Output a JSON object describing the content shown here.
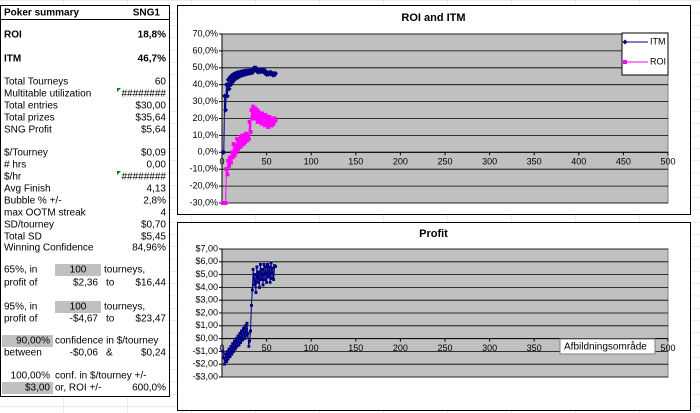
{
  "summary": {
    "rows": [
      [
        "Poker summary",
        "SNG1"
      ],
      [
        "ROI",
        "18,8%"
      ],
      [
        "ITM",
        "46,7%"
      ],
      [
        "Total Tourneys",
        "60"
      ],
      [
        "Multitable utilization",
        "########"
      ],
      [
        "Total entries",
        "$30,00"
      ],
      [
        "Total prizes",
        "$35,64"
      ],
      [
        "SNG Profit",
        "$5,64"
      ],
      [
        "$/Tourney",
        "$0,09"
      ],
      [
        "# hrs",
        "0,00"
      ],
      [
        "$/hr",
        "########"
      ],
      [
        "Avg Finish",
        "4,13"
      ],
      [
        "Bubble % +/-",
        "2,8%"
      ],
      [
        "max OOTM streak",
        "4"
      ],
      [
        "SD/tourney",
        "$0,70"
      ],
      [
        "Total SD",
        "$5,45"
      ],
      [
        "Winning Confidence",
        "84,96%"
      ],
      [
        "65%, in",
        "100",
        "tourneys,"
      ],
      [
        "profit of",
        "$2,36",
        "to",
        "$16,44"
      ],
      [
        "95%, in",
        "100",
        "tourneys,"
      ],
      [
        "profit of",
        "-$4,67",
        "to",
        "$23,47"
      ],
      [
        "90,00%",
        "confidence in $/tourney"
      ],
      [
        "between",
        "-$0,06",
        "&",
        "$0,24"
      ],
      [
        "100,00%",
        "conf. in $/tourney +/-"
      ],
      [
        "$3,00",
        "or, ROI +/-",
        "600,0%"
      ]
    ]
  },
  "tooltip": "Afbildningsområde",
  "chart_data": [
    {
      "type": "line",
      "title": "ROI and ITM",
      "x": [
        1,
        2,
        3,
        4,
        5,
        6,
        7,
        8,
        9,
        10,
        11,
        12,
        13,
        14,
        15,
        16,
        17,
        18,
        19,
        20,
        21,
        22,
        23,
        24,
        25,
        26,
        27,
        28,
        29,
        30,
        31,
        32,
        33,
        34,
        35,
        36,
        37,
        38,
        39,
        40,
        41,
        42,
        43,
        44,
        45,
        46,
        47,
        48,
        49,
        50,
        51,
        52,
        53,
        54,
        55,
        56,
        57,
        58,
        59,
        60
      ],
      "series": [
        {
          "name": "ITM",
          "color": "#000080",
          "values": [
            0,
            0,
            33.3,
            25,
            40,
            33.3,
            42.9,
            37.5,
            44.4,
            40,
            45.5,
            41.7,
            46.2,
            42.9,
            46.7,
            43.8,
            47.1,
            44.4,
            47.4,
            45,
            47.6,
            45.5,
            47.8,
            45.8,
            48,
            46.2,
            48.1,
            46.4,
            48.3,
            46.7,
            48.4,
            46.9,
            48.5,
            47.1,
            48.6,
            50,
            48.6,
            50,
            48.7,
            47.5,
            48.8,
            47.6,
            48.8,
            47.7,
            48.9,
            47.8,
            48.9,
            46.8,
            47.9,
            46,
            47.1,
            46.2,
            47.2,
            46.3,
            47.3,
            46.4,
            45.6,
            46.6,
            45.8,
            46.7
          ]
        },
        {
          "name": "ROI",
          "color": "#ff00ff",
          "values": [
            -30,
            -30,
            -30,
            -30,
            -10,
            -13,
            -5,
            -8,
            -3,
            -6,
            0,
            -3,
            5,
            -2,
            4,
            0,
            8,
            2,
            7,
            3,
            9,
            4,
            10,
            5,
            10,
            6,
            11,
            7,
            10,
            8,
            18,
            12,
            25,
            20,
            27,
            22,
            26,
            20,
            25,
            18,
            24,
            19,
            22,
            17,
            23,
            18,
            21,
            16,
            22,
            17,
            20,
            15,
            21,
            17,
            20,
            16,
            19,
            17,
            20,
            18.8
          ]
        }
      ],
      "xlim": [
        0,
        500
      ],
      "xticks": [
        0,
        50,
        100,
        150,
        200,
        250,
        300,
        350,
        400,
        450,
        500
      ],
      "ylim": [
        -30,
        70
      ],
      "yticks": [
        {
          "value": -30,
          "label": "-30,0%"
        },
        {
          "value": -20,
          "label": "-20,0%"
        },
        {
          "value": -10,
          "label": "-10,0%"
        },
        {
          "value": 0,
          "label": "0,0%"
        },
        {
          "value": 10,
          "label": "10,0%"
        },
        {
          "value": 20,
          "label": "20,0%"
        },
        {
          "value": 30,
          "label": "30,0%"
        },
        {
          "value": 40,
          "label": "40,0%"
        },
        {
          "value": 50,
          "label": "50,0%"
        },
        {
          "value": 60,
          "label": "60,0%"
        },
        {
          "value": 70,
          "label": "70,0%"
        }
      ],
      "grid": true,
      "legend": "upper right"
    },
    {
      "type": "line",
      "title": "Profit",
      "x": [
        1,
        2,
        3,
        4,
        5,
        6,
        7,
        8,
        9,
        10,
        11,
        12,
        13,
        14,
        15,
        16,
        17,
        18,
        19,
        20,
        21,
        22,
        23,
        24,
        25,
        26,
        27,
        28,
        29,
        30,
        31,
        32,
        33,
        34,
        35,
        36,
        37,
        38,
        39,
        40,
        41,
        42,
        43,
        44,
        45,
        46,
        47,
        48,
        49,
        50,
        51,
        52,
        53,
        54,
        55,
        56,
        57,
        58,
        59,
        60
      ],
      "series": [
        {
          "name": "Profit",
          "color": "#000080",
          "values": [
            -1,
            -1.5,
            -2,
            -1.2,
            -1.8,
            -1,
            -1.6,
            -0.8,
            -1.4,
            -0.6,
            -1.2,
            -0.4,
            -1,
            -0.2,
            -0.8,
            0,
            -0.6,
            0.2,
            -0.5,
            0.4,
            -0.3,
            0.6,
            -0.1,
            0.8,
            0,
            1,
            0.2,
            1.2,
            0.4,
            -0.6,
            -0.2,
            0.6,
            2.6,
            3.8,
            5.4,
            4.2,
            5,
            3.6,
            5.6,
            4.4,
            5.2,
            4,
            5.8,
            4.6,
            5.4,
            4.2,
            5.8,
            4.6,
            5.6,
            4.4,
            5.8,
            4.8,
            5.6,
            4.4,
            5.9,
            4.7,
            5.5,
            4.6,
            5.7,
            5.64
          ]
        }
      ],
      "xlim": [
        0,
        500
      ],
      "xticks": [
        0,
        50,
        100,
        150,
        200,
        250,
        300,
        350,
        400,
        450,
        500
      ],
      "ylim": [
        -3,
        7
      ],
      "yticks": [
        {
          "value": -3,
          "label": "-$3,00"
        },
        {
          "value": -2,
          "label": "-$2,00"
        },
        {
          "value": -1,
          "label": "-$1,00"
        },
        {
          "value": 0,
          "label": "$0,00"
        },
        {
          "value": 1,
          "label": "$1,00"
        },
        {
          "value": 2,
          "label": "$2,00"
        },
        {
          "value": 3,
          "label": "$3,00"
        },
        {
          "value": 4,
          "label": "$4,00"
        },
        {
          "value": 5,
          "label": "$5,00"
        },
        {
          "value": 6,
          "label": "$6,00"
        },
        {
          "value": 7,
          "label": "$7,00"
        }
      ],
      "grid": true
    }
  ]
}
